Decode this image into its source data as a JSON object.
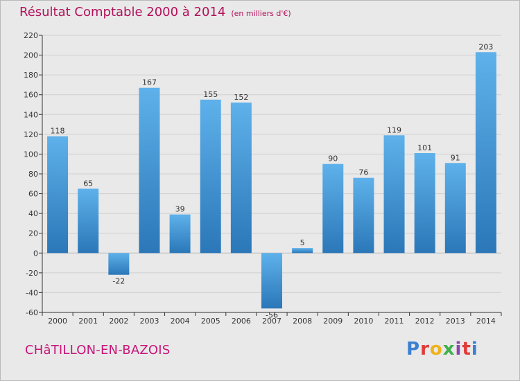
{
  "title": "Résultat Comptable 2000 à 2014",
  "unit": "(en milliers d'€)",
  "place": "CHâTILLON-EN-BAZOIS",
  "brand": {
    "text": "Proxiti",
    "colors": [
      "#3a7fd0",
      "#e23a3a",
      "#f0b21a",
      "#3fb04a",
      "#8e44ad",
      "#e23a3a",
      "#3a7fd0"
    ]
  },
  "colors": {
    "bar_top": "#5eb1ea",
    "bar_bottom": "#2b77b8",
    "title": "#b3115c"
  },
  "chart_data": {
    "type": "bar",
    "title": "Résultat Comptable 2000 à 2014",
    "ylabel": "en milliers d'€",
    "xlabel": "",
    "categories": [
      "2000",
      "2001",
      "2002",
      "2003",
      "2004",
      "2005",
      "2006",
      "2007",
      "2008",
      "2009",
      "2010",
      "2011",
      "2012",
      "2013",
      "2014"
    ],
    "values": [
      118,
      65,
      -22,
      167,
      39,
      155,
      152,
      -56,
      5,
      90,
      76,
      119,
      101,
      91,
      203
    ],
    "ylim": [
      -60,
      220
    ],
    "yticks": [
      -60,
      -40,
      -20,
      0,
      20,
      40,
      60,
      80,
      100,
      120,
      140,
      160,
      180,
      200,
      220
    ],
    "grid": true
  }
}
